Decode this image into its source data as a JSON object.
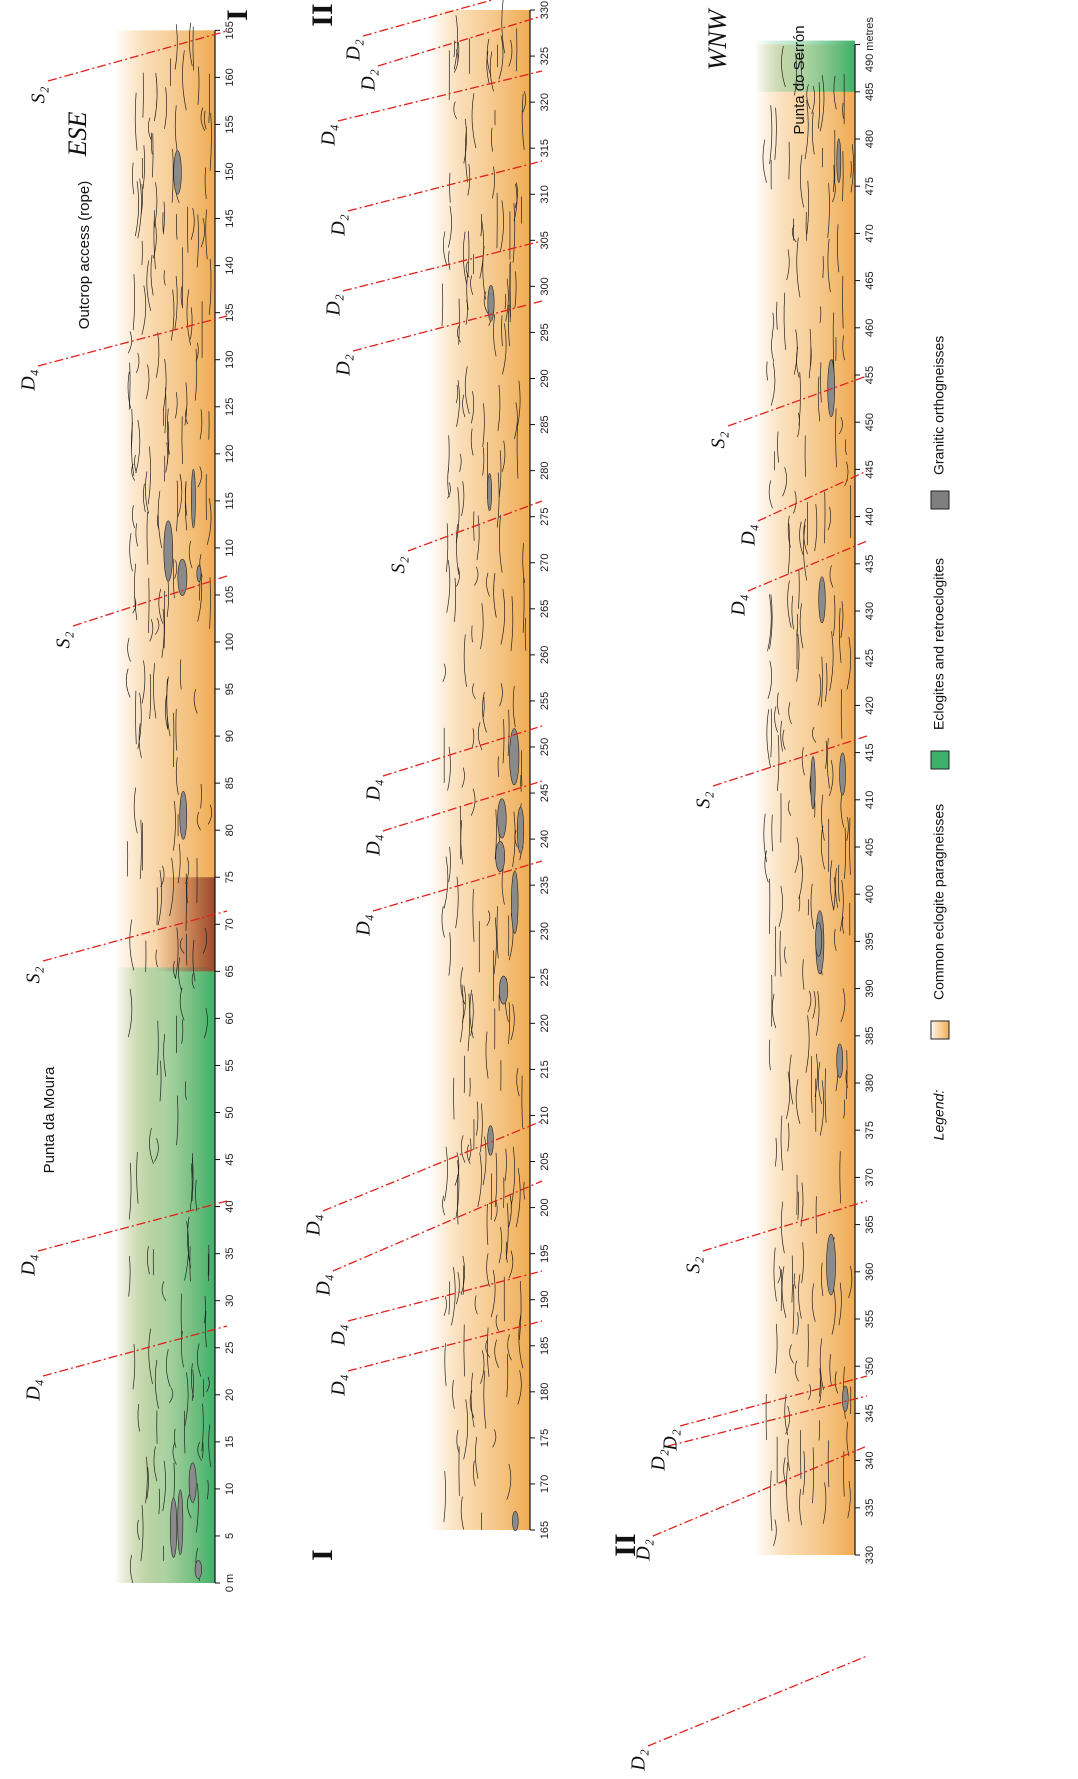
{
  "panels": [
    {
      "start_label": "ESE",
      "end_label": "I",
      "ticks": [
        "0 m",
        "5",
        "10",
        "15",
        "20",
        "25",
        "30",
        "35",
        "40",
        "45",
        "50",
        "55",
        "60",
        "65",
        "70",
        "75",
        "80",
        "85",
        "90",
        "95",
        "100",
        "105",
        "110",
        "115",
        "120",
        "125",
        "130",
        "135",
        "140",
        "145",
        "150",
        "155",
        "160",
        "165"
      ],
      "annotations": [
        "D₄",
        "D₄",
        "Punta da Moura",
        "S₂",
        "S₂",
        "D₄",
        "Outcrop access (rope)",
        "S₂"
      ]
    },
    {
      "start_label": "I",
      "end_label": "II",
      "ticks": [
        "165",
        "170",
        "175",
        "180",
        "185",
        "190",
        "195",
        "200",
        "205",
        "210",
        "215",
        "220",
        "225",
        "230",
        "235",
        "240",
        "245",
        "250",
        "255",
        "260",
        "265",
        "270",
        "275",
        "280",
        "285",
        "290",
        "295",
        "300",
        "305",
        "310",
        "315",
        "320",
        "325",
        "330"
      ],
      "annotations": [
        "D₄",
        "D₄",
        "D₄",
        "D₄",
        "D₄",
        "D₄",
        "D₄",
        "S₂",
        "D₂",
        "D₂",
        "D₂",
        "D₄",
        "D₂",
        "D₂"
      ]
    },
    {
      "start_label": "II",
      "end_label": "WNW",
      "ticks": [
        "330",
        "335",
        "340",
        "345",
        "350",
        "355",
        "360",
        "365",
        "370",
        "375",
        "380",
        "385",
        "390",
        "395",
        "400",
        "405",
        "410",
        "415",
        "420",
        "425",
        "430",
        "435",
        "440",
        "445",
        "450",
        "455",
        "460",
        "465",
        "470",
        "475",
        "480",
        "485",
        "490 metres"
      ],
      "annotations": [
        "D₂",
        "D₂",
        "D₂",
        "D₂",
        "S₂",
        "S₂",
        "D₄",
        "D₄",
        "S₂",
        "Punta do Serrón"
      ]
    }
  ],
  "legend": {
    "title": "Legend:",
    "items": [
      "Common eclogite paragneisses",
      "Eclogites and retroeclogites",
      "Granitic orthogneisses"
    ]
  }
}
